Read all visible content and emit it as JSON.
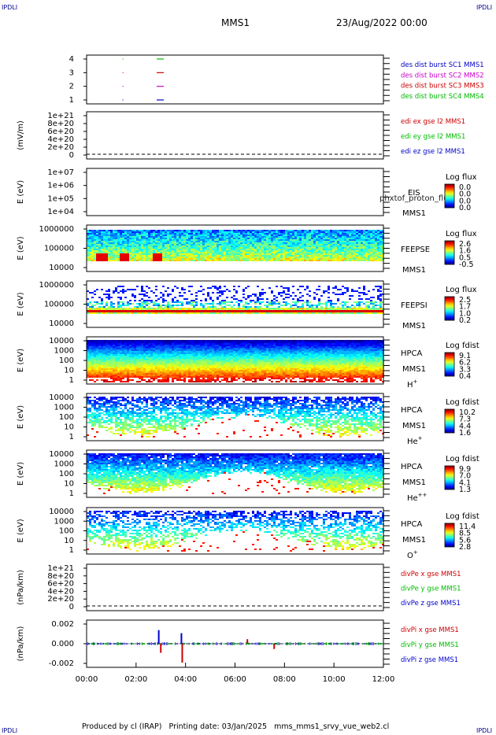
{
  "header": {
    "corner_left": "IPDLI",
    "corner_right": "IPDLI",
    "title": "MMS1",
    "date": "23/Aug/2022 00:00",
    "corner_bottom_left": "IPDLI",
    "corner_bottom_right": "IPDLI"
  },
  "footer": {
    "text": "Produced by cl (IRAP)   Printing date: 03/Jan/2025   mms_mms1_srvy_vue_web2.cl"
  },
  "time_axis": {
    "ticks": [
      "00:00",
      "02:00",
      "04:00",
      "06:00",
      "08:00",
      "10:00",
      "12:00"
    ]
  },
  "panels": [
    {
      "id": "burst",
      "ylabel": "",
      "yticks": [
        "4",
        "3",
        "2",
        "1"
      ],
      "legend": [
        {
          "text": "des dist burst SC1 MMS1",
          "color": "#0000cc"
        },
        {
          "text": "des dist burst SC2 MMS2",
          "color": "#cc00cc"
        },
        {
          "text": "des dist burst SC3 MMS3",
          "color": "#cc0000"
        },
        {
          "text": "des dist burst SC4 MMS4",
          "color": "#00bb00"
        }
      ]
    },
    {
      "id": "edi",
      "ylabel": "(mV/m)",
      "yticks": [
        "1e+21",
        "8e+20",
        "6e+20",
        "4e+20",
        "2e+20",
        "0"
      ],
      "legend": [
        {
          "text": "edi ex gse l2 MMS1",
          "color": "#cc0000"
        },
        {
          "text": "edi ey gse l2 MMS1",
          "color": "#00bb00"
        },
        {
          "text": "edi ez gse l2 MMS1",
          "color": "#0000cc"
        }
      ]
    },
    {
      "id": "eis",
      "ylabel": "E (eV)",
      "yticks": [
        "1e+07",
        "1e+06",
        "1e+05",
        "1e+04"
      ],
      "label1": "EIS",
      "label2": "MMS1",
      "overlay": "phxtof_proton_flux",
      "cbar_title": "Log flux",
      "cbar_ticks": [
        "0.0",
        "0.0",
        "0.0",
        "0.0"
      ]
    },
    {
      "id": "feepse",
      "ylabel": "E (eV)",
      "yticks": [
        "1000000",
        "100000",
        "10000"
      ],
      "label1": "FEEPSE",
      "label2": "MMS1",
      "cbar_title": "Log flux",
      "cbar_ticks": [
        "2.6",
        "1.6",
        "0.5",
        "-0.5"
      ]
    },
    {
      "id": "feepsi",
      "ylabel": "E (eV)",
      "yticks": [
        "1000000",
        "100000",
        "10000"
      ],
      "label1": "FEEPSI",
      "label2": "MMS1",
      "cbar_title": "Log flux",
      "cbar_ticks": [
        "2.5",
        "1.7",
        "1.0",
        "0.2"
      ]
    },
    {
      "id": "hpca_h",
      "ylabel": "E (eV)",
      "yticks": [
        "10000",
        "1000",
        "100",
        "10",
        "1"
      ],
      "label1": "HPCA",
      "label2": "MMS1",
      "species": "H",
      "species_sup": "+",
      "cbar_title": "Log fdist",
      "cbar_ticks": [
        "9.1",
        "6.2",
        "3.3",
        "0.4"
      ]
    },
    {
      "id": "hpca_he",
      "ylabel": "E (eV)",
      "yticks": [
        "10000",
        "1000",
        "100",
        "10",
        "1"
      ],
      "label1": "HPCA",
      "label2": "MMS1",
      "species": "He",
      "species_sup": "+",
      "cbar_title": "Log fdist",
      "cbar_ticks": [
        "10.2",
        "7.3",
        "4.4",
        "1.6"
      ]
    },
    {
      "id": "hpca_hepp",
      "ylabel": "E (eV)",
      "yticks": [
        "10000",
        "1000",
        "100",
        "10",
        "1"
      ],
      "label1": "HPCA",
      "label2": "MMS1",
      "species": "He",
      "species_sup": "++",
      "cbar_title": "Log fdist",
      "cbar_ticks": [
        "9.9",
        "7.0",
        "4.1",
        "1.3"
      ]
    },
    {
      "id": "hpca_o",
      "ylabel": "E (eV)",
      "yticks": [
        "10000",
        "1000",
        "100",
        "10",
        "1"
      ],
      "label1": "HPCA",
      "label2": "MMS1",
      "species": "O",
      "species_sup": "+",
      "cbar_title": "Log fdist",
      "cbar_ticks": [
        "11.4",
        "8.5",
        "5.6",
        "2.8"
      ]
    },
    {
      "id": "divpe",
      "ylabel": "(nPa/km)",
      "yticks": [
        "1e+21",
        "8e+20",
        "6e+20",
        "4e+20",
        "2e+20",
        "0"
      ],
      "legend": [
        {
          "text": "divPe x gse MMS1",
          "color": "#cc0000"
        },
        {
          "text": "divPe y gse MMS1",
          "color": "#00bb00"
        },
        {
          "text": "divPe z gse MMS1",
          "color": "#0000cc"
        }
      ]
    },
    {
      "id": "divpi",
      "ylabel": "(nPa/km)",
      "yticks": [
        "0.002",
        "0.000",
        "-0.002"
      ],
      "legend": [
        {
          "text": "divPi x gse MMS1",
          "color": "#cc0000"
        },
        {
          "text": "divPi y gse MMS1",
          "color": "#00bb00"
        },
        {
          "text": "divPi z gse MMS1",
          "color": "#0000cc"
        }
      ]
    }
  ],
  "chart_data": {
    "type": "heatmap",
    "title": "MMS1",
    "x_range": [
      "00:00",
      "12:00"
    ],
    "burst_marks": [
      {
        "sc": 1,
        "time": "01:27",
        "color": "#0000cc"
      },
      {
        "sc": 2,
        "time": "01:27",
        "color": "#cc00cc"
      },
      {
        "sc": 3,
        "time": "01:27",
        "color": "#cc0000"
      },
      {
        "sc": 4,
        "time": "01:27",
        "color": "#00bb00"
      },
      {
        "sc": 1,
        "time": "02:50",
        "color": "#0000cc"
      },
      {
        "sc": 2,
        "time": "02:50",
        "color": "#cc00cc"
      },
      {
        "sc": 3,
        "time": "02:50",
        "color": "#cc0000"
      },
      {
        "sc": 4,
        "time": "02:50",
        "color": "#00bb00"
      }
    ],
    "divpi_spikes": [
      {
        "time": "02:55",
        "value": 0.0018,
        "color": "#0000cc"
      },
      {
        "time": "03:00",
        "value": -0.0012,
        "color": "#cc0000"
      },
      {
        "time": "03:50",
        "value": 0.0014,
        "color": "#0000cc"
      },
      {
        "time": "03:52",
        "value": -0.0025,
        "color": "#cc0000"
      },
      {
        "time": "06:30",
        "value": 0.0006,
        "color": "#cc0000"
      },
      {
        "time": "07:35",
        "value": -0.0007,
        "color": "#cc0000"
      }
    ]
  }
}
